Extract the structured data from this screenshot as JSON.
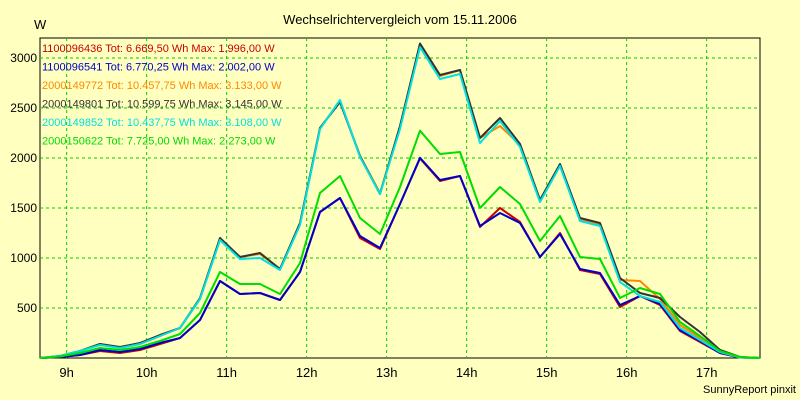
{
  "chart_data": {
    "type": "line",
    "title": "Wechselrichtervergleich vom 15.11.2006",
    "ylabel": "W",
    "xlabel": "",
    "credit": "SunnyReport pinxit",
    "ylim": [
      0,
      3200
    ],
    "yticks": [
      500,
      1000,
      1500,
      2000,
      2500,
      3000
    ],
    "xlim": [
      "08:40",
      "17:40"
    ],
    "xticks": [
      "9h",
      "10h",
      "11h",
      "12h",
      "13h",
      "14h",
      "15h",
      "16h",
      "17h"
    ],
    "grid": true,
    "legend_position": "top-left",
    "x": [
      "08:40",
      "08:55",
      "09:10",
      "09:25",
      "09:40",
      "09:55",
      "10:10",
      "10:25",
      "10:40",
      "10:55",
      "11:10",
      "11:25",
      "11:40",
      "11:55",
      "12:10",
      "12:25",
      "12:40",
      "12:55",
      "13:10",
      "13:25",
      "13:40",
      "13:55",
      "14:10",
      "14:25",
      "14:40",
      "14:55",
      "15:10",
      "15:25",
      "15:40",
      "15:55",
      "16:10",
      "16:25",
      "16:40",
      "16:55",
      "17:10",
      "17:25",
      "17:40"
    ],
    "series": [
      {
        "name": "1100096436",
        "legend": "1100096436 Tot: 6.669,50 Wh Max: 1.996,00 W",
        "color": "#cc0000",
        "values": [
          0,
          10,
          30,
          70,
          50,
          80,
          140,
          200,
          380,
          770,
          640,
          650,
          580,
          860,
          1460,
          1600,
          1200,
          1090,
          1540,
          1996,
          1770,
          1820,
          1310,
          1500,
          1360,
          1010,
          1250,
          880,
          840,
          510,
          620,
          530,
          270,
          160,
          50,
          5,
          0
        ]
      },
      {
        "name": "1100096541",
        "legend": "1100096541 Tot: 6.770,25 Wh Max: 2.002,00 W",
        "color": "#0000cc",
        "values": [
          0,
          10,
          30,
          80,
          60,
          90,
          150,
          200,
          380,
          770,
          640,
          650,
          580,
          860,
          1460,
          1600,
          1220,
          1100,
          1540,
          2002,
          1780,
          1820,
          1320,
          1450,
          1350,
          1010,
          1240,
          890,
          850,
          530,
          620,
          540,
          280,
          170,
          50,
          5,
          0
        ]
      },
      {
        "name": "2000149772",
        "legend": "2000149772 Tot: 10.457,75 Wh Max: 3.133,00 W",
        "color": "#ff8800",
        "values": [
          0,
          20,
          70,
          140,
          100,
          140,
          220,
          300,
          590,
          1190,
          1010,
          1040,
          890,
          1340,
          2300,
          2570,
          2020,
          1650,
          2310,
          3133,
          2820,
          2880,
          2200,
          2320,
          2130,
          1580,
          1930,
          1380,
          1340,
          780,
          770,
          590,
          330,
          200,
          60,
          5,
          0
        ]
      },
      {
        "name": "2000149801",
        "legend": "2000149801 Tot: 10.599,75 Wh Max: 3.145,00 W",
        "color": "#333333",
        "values": [
          0,
          20,
          70,
          140,
          110,
          150,
          230,
          300,
          600,
          1200,
          1010,
          1050,
          890,
          1350,
          2300,
          2560,
          2020,
          1640,
          2320,
          3145,
          2830,
          2880,
          2200,
          2400,
          2140,
          1580,
          1940,
          1400,
          1350,
          800,
          650,
          600,
          410,
          260,
          80,
          10,
          0
        ]
      },
      {
        "name": "2000149852",
        "legend": "2000149852 Tot: 10.437,75 Wh Max: 3.108,00 W",
        "color": "#00e0e0",
        "values": [
          0,
          20,
          70,
          130,
          100,
          140,
          220,
          300,
          590,
          1180,
          990,
          1000,
          880,
          1330,
          2290,
          2580,
          2010,
          1640,
          2290,
          3108,
          2790,
          2840,
          2150,
          2370,
          2110,
          1560,
          1920,
          1370,
          1320,
          760,
          620,
          560,
          300,
          180,
          60,
          5,
          0
        ]
      },
      {
        "name": "2000150622",
        "legend": "2000150622 Tot: 7.725,00 Wh Max: 2.273,00 W",
        "color": "#00dd00",
        "values": [
          0,
          15,
          50,
          100,
          80,
          110,
          170,
          240,
          450,
          860,
          740,
          740,
          640,
          950,
          1650,
          1820,
          1400,
          1240,
          1710,
          2273,
          2040,
          2060,
          1500,
          1710,
          1540,
          1170,
          1420,
          1010,
          990,
          600,
          700,
          640,
          360,
          220,
          70,
          10,
          0
        ]
      }
    ]
  }
}
